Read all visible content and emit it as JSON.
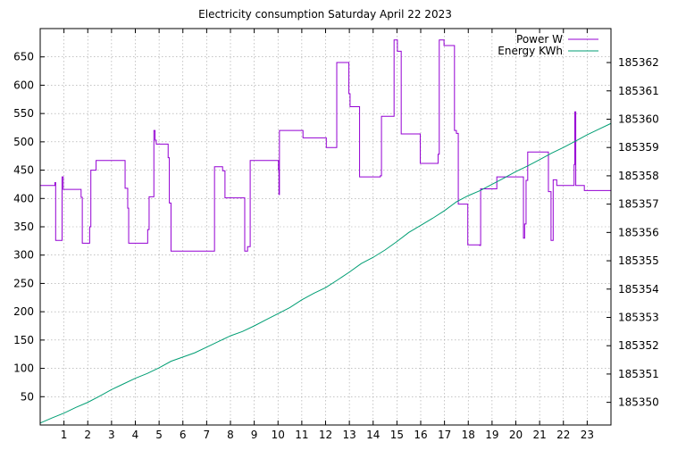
{
  "chart_data": {
    "type": "line",
    "title": "Electricity consumption Saturday April 22 2023",
    "xlabel": "",
    "ylabel": "",
    "y2label": "",
    "grid": true,
    "legend_position": "top-right",
    "xlim": [
      0,
      24
    ],
    "ylim": [
      0,
      700
    ],
    "y2lim": [
      185349.2,
      185363.2
    ],
    "x_ticks": [
      1,
      2,
      3,
      4,
      5,
      6,
      7,
      8,
      9,
      10,
      11,
      12,
      13,
      14,
      15,
      16,
      17,
      18,
      19,
      20,
      21,
      22,
      23
    ],
    "y_ticks": [
      50,
      100,
      150,
      200,
      250,
      300,
      350,
      400,
      450,
      500,
      550,
      600,
      650
    ],
    "y2_ticks": [
      185350,
      185351,
      185352,
      185353,
      185354,
      185355,
      185356,
      185357,
      185358,
      185359,
      185360,
      185361,
      185362
    ],
    "series": [
      {
        "name": "Power W",
        "axis": "left",
        "color": "#9400d3",
        "style": "step",
        "x": [
          0,
          0.62,
          0.65,
          0.68,
          0.92,
          0.97,
          1.08,
          1.72,
          1.77,
          1.82,
          2.08,
          2.13,
          2.35,
          3.52,
          3.57,
          3.68,
          3.72,
          4.48,
          4.52,
          4.58,
          4.78,
          4.83,
          4.88,
          5.35,
          5.38,
          5.43,
          5.5,
          6.65,
          7.33,
          7.67,
          7.77,
          8.6,
          8.65,
          8.72,
          8.83,
          10.02,
          10.04,
          10.06,
          11.05,
          12.03,
          12.47,
          12.98,
          13.03,
          13.43,
          14.3,
          14.35,
          14.88,
          15.02,
          15.18,
          15.98,
          16.73,
          16.78,
          16.98,
          17.42,
          17.5,
          17.58,
          17.98,
          18.48,
          18.52,
          19.2,
          19.98,
          20.32,
          20.37,
          20.43,
          20.5,
          21.32,
          21.37,
          21.48,
          21.57,
          21.72,
          22.42,
          22.45,
          22.48,
          22.52,
          22.88,
          23.5,
          24
        ],
        "y": [
          423,
          428,
          326,
          326,
          438,
          416,
          416,
          402,
          321,
          321,
          350,
          450,
          467,
          467,
          418,
          383,
          321,
          321,
          345,
          403,
          520,
          503,
          496,
          496,
          472,
          392,
          307,
          307,
          456,
          449,
          401,
          307,
          307,
          315,
          467,
          450,
          407,
          520,
          507,
          490,
          640,
          585,
          562,
          438,
          440,
          545,
          680,
          660,
          514,
          462,
          478,
          680,
          670,
          520,
          515,
          390,
          318,
          317,
          417,
          438,
          438,
          330,
          355,
          432,
          482,
          482,
          412,
          326,
          433,
          423,
          423,
          460,
          553,
          423,
          414,
          414,
          414
        ]
      },
      {
        "name": "Energy KWh",
        "axis": "right",
        "color": "#009e73",
        "style": "line",
        "x": [
          0,
          0.5,
          1,
          1.5,
          2,
          2.5,
          3,
          3.5,
          4,
          4.5,
          5,
          5.5,
          6,
          6.5,
          7,
          7.5,
          8,
          8.5,
          9,
          9.5,
          10,
          10.5,
          11,
          11.5,
          12,
          12.5,
          13,
          13.5,
          14,
          14.5,
          15,
          15.5,
          16,
          16.5,
          17,
          17.5,
          18,
          18.5,
          19,
          19.5,
          20,
          20.5,
          21,
          21.5,
          22,
          22.5,
          23,
          23.5,
          24
        ],
        "y": [
          185349.27,
          185349.45,
          185349.62,
          185349.82,
          185350.0,
          185350.22,
          185350.45,
          185350.65,
          185350.85,
          185351.02,
          185351.22,
          185351.45,
          185351.6,
          185351.75,
          185351.95,
          185352.15,
          185352.35,
          185352.5,
          185352.7,
          185352.92,
          185353.13,
          185353.35,
          185353.62,
          185353.85,
          185354.05,
          185354.32,
          185354.6,
          185354.9,
          185355.12,
          185355.38,
          185355.68,
          185356.0,
          185356.25,
          185356.5,
          185356.77,
          185357.08,
          185357.3,
          185357.48,
          185357.7,
          185357.92,
          185358.15,
          185358.35,
          185358.57,
          185358.8,
          185359.0,
          185359.22,
          185359.45,
          185359.65,
          185359.85
        ]
      }
    ]
  }
}
